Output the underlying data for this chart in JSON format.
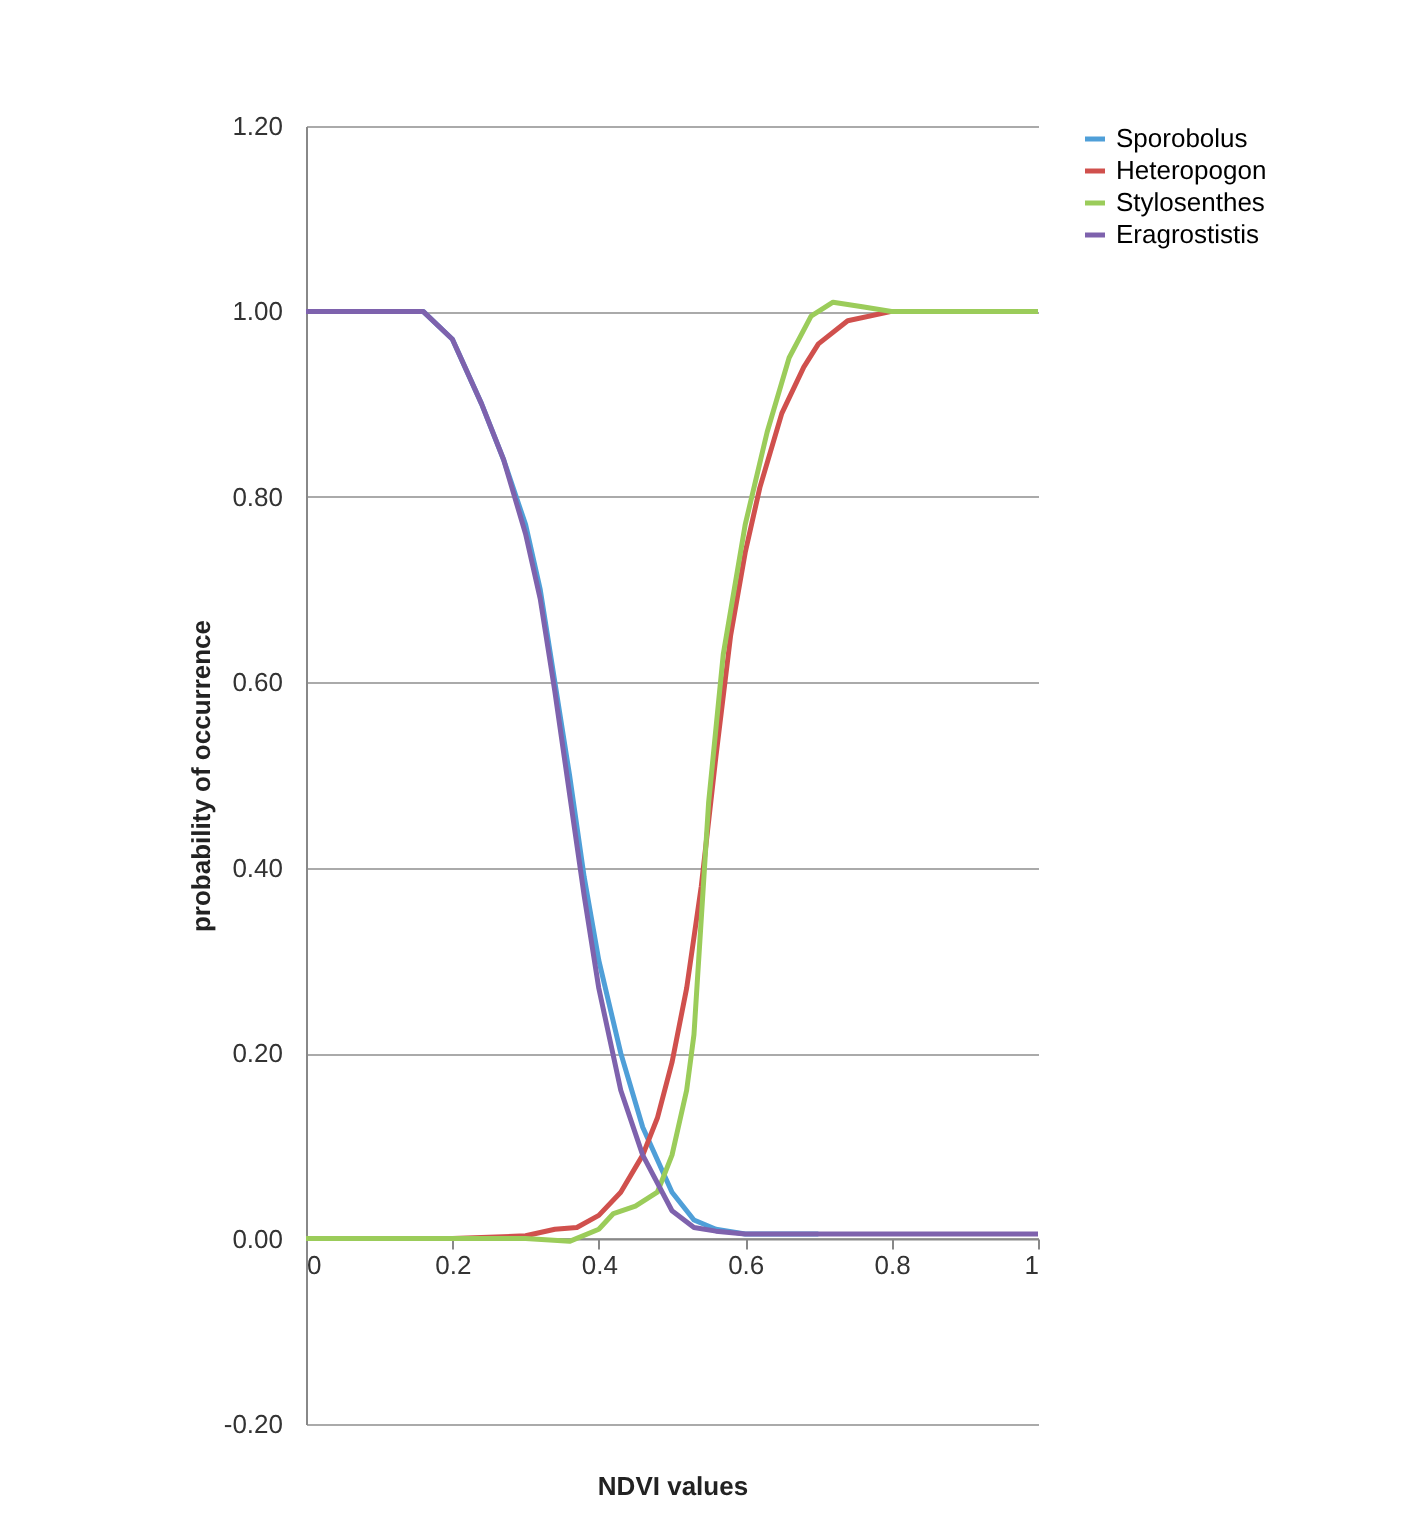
{
  "chart_data": {
    "type": "line",
    "xlabel": "NDVI values",
    "ylabel": "probability of occurrence",
    "xlim": [
      0,
      1
    ],
    "xticks": [
      0,
      0.2,
      0.4,
      0.6,
      0.8,
      1
    ],
    "ylim": [
      -0.2,
      1.2
    ],
    "yticks": [
      {
        "value": -0.2,
        "label": "-0.20"
      },
      {
        "value": 0,
        "label": "0.00"
      },
      {
        "value": 0.2,
        "label": "0.20"
      },
      {
        "value": 0.4,
        "label": "0.40"
      },
      {
        "value": 0.6,
        "label": "0.60"
      },
      {
        "value": 0.8,
        "label": "0.80"
      },
      {
        "value": 1.0,
        "label": "1.00"
      },
      {
        "value": 1.2,
        "label": "1.20"
      }
    ],
    "grid": "y",
    "legend": "right",
    "marker": "none",
    "line_style": "solid",
    "series": [
      {
        "name": "Sporobolus",
        "color": "#4f9fd8",
        "x": [
          0.1,
          0.14,
          0.16,
          0.2,
          0.24,
          0.27,
          0.3,
          0.32,
          0.34,
          0.36,
          0.38,
          0.4,
          0.43,
          0.46,
          0.5,
          0.53,
          0.56,
          0.6,
          0.7
        ],
        "values": [
          1,
          1,
          1,
          0.97,
          0.9,
          0.84,
          0.77,
          0.7,
          0.6,
          0.5,
          0.39,
          0.3,
          0.2,
          0.12,
          0.05,
          0.02,
          0.01,
          0.005,
          0.005
        ]
      },
      {
        "name": "Heteropogon",
        "color": "#d0504d",
        "x": [
          0,
          0.1,
          0.2,
          0.3,
          0.34,
          0.37,
          0.4,
          0.43,
          0.46,
          0.48,
          0.5,
          0.52,
          0.54,
          0.56,
          0.58,
          0.6,
          0.62,
          0.65,
          0.68,
          0.7,
          0.74,
          0.8
        ],
        "values": [
          0,
          0,
          0,
          0.003,
          0.01,
          0.012,
          0.025,
          0.05,
          0.09,
          0.13,
          0.19,
          0.27,
          0.38,
          0.52,
          0.65,
          0.74,
          0.81,
          0.89,
          0.94,
          0.965,
          0.99,
          1
        ]
      },
      {
        "name": "Stylosenthes",
        "color": "#9bcc5a",
        "x": [
          0,
          0.1,
          0.2,
          0.3,
          0.36,
          0.4,
          0.42,
          0.45,
          0.48,
          0.5,
          0.52,
          0.53,
          0.55,
          0.57,
          0.6,
          0.63,
          0.66,
          0.69,
          0.72,
          0.76,
          0.8,
          0.9,
          1
        ],
        "values": [
          0,
          0,
          0,
          0,
          -0.003,
          0.01,
          0.027,
          0.035,
          0.05,
          0.09,
          0.16,
          0.22,
          0.47,
          0.63,
          0.77,
          0.87,
          0.95,
          0.995,
          1.01,
          1.005,
          1,
          1,
          1
        ]
      },
      {
        "name": "Eragrostistis",
        "color": "#7e62ad",
        "x": [
          0,
          0.05,
          0.1,
          0.14,
          0.16,
          0.2,
          0.24,
          0.27,
          0.3,
          0.32,
          0.34,
          0.36,
          0.38,
          0.4,
          0.43,
          0.46,
          0.5,
          0.53,
          0.56,
          0.6,
          0.7,
          0.8,
          0.9,
          1
        ],
        "values": [
          1,
          1,
          1,
          1,
          1,
          0.97,
          0.9,
          0.84,
          0.76,
          0.69,
          0.59,
          0.48,
          0.37,
          0.27,
          0.16,
          0.09,
          0.03,
          0.012,
          0.008,
          0.005,
          0.005,
          0.005,
          0.005,
          0.005
        ]
      }
    ]
  }
}
